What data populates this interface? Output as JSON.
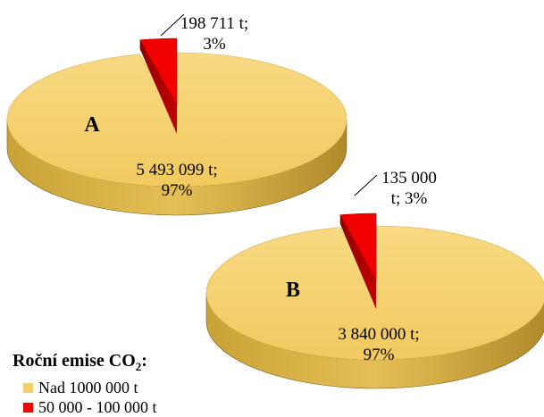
{
  "colors": {
    "large": "#F5CF6C",
    "small": "#F20000",
    "outline": "#6E5A23"
  },
  "chart_data": [
    {
      "type": "pie",
      "title": "A",
      "categories": [
        "Nad 1000 000 t",
        "50 000 - 100 000 t"
      ],
      "values": [
        5493099,
        198711
      ],
      "percentages": [
        97,
        3
      ],
      "data_labels": [
        {
          "line1": "5 493 099 t;",
          "line2": "97%"
        },
        {
          "line1": "198 711 t;",
          "line2": "3%"
        }
      ]
    },
    {
      "type": "pie",
      "title": "B",
      "categories": [
        "Nad 1000 000 t",
        "50 000 - 100 000 t"
      ],
      "values": [
        3840000,
        135000
      ],
      "percentages": [
        97,
        3
      ],
      "data_labels": [
        {
          "line1": "3 840 000 t;",
          "line2": "97%"
        },
        {
          "line1": "135 000",
          "line2": "t; 3%"
        }
      ]
    }
  ],
  "legend": {
    "title_main": "Roční emise CO",
    "title_sub": "2",
    "title_suffix": ":",
    "items": [
      {
        "label": "Nad 1000 000 t",
        "color_key": "large"
      },
      {
        "label": "50 000 - 100 000 t",
        "color_key": "small"
      }
    ]
  }
}
